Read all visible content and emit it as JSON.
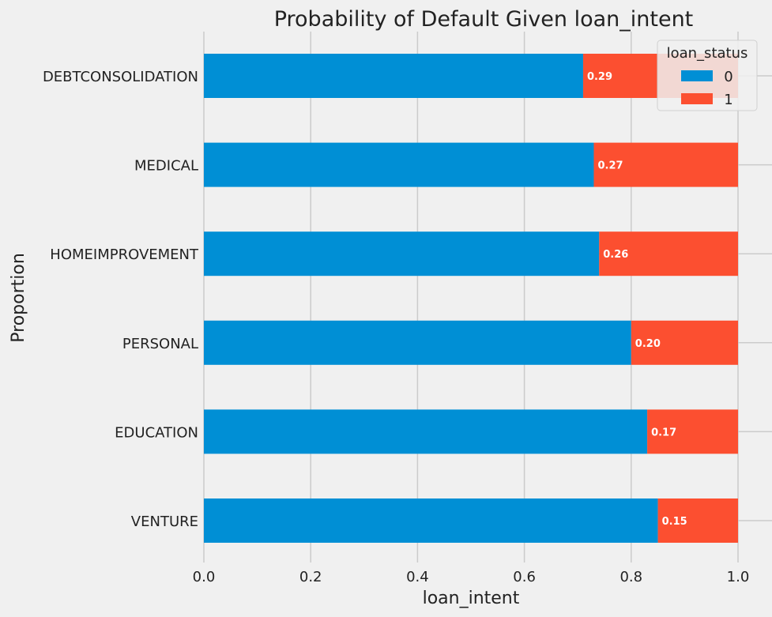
{
  "chart_data": {
    "type": "bar",
    "orientation": "horizontal",
    "stacked": true,
    "title": "Probability of Default Given loan_intent",
    "xlabel": "loan_intent",
    "ylabel": "Proportion",
    "xlim": [
      0,
      1.0
    ],
    "x_ticks": [
      "0.0",
      "0.2",
      "0.4",
      "0.6",
      "0.8",
      "1.0"
    ],
    "x_tick_values": [
      0,
      0.2,
      0.4,
      0.6,
      0.8,
      1.0
    ],
    "grid": true,
    "categories": [
      "DEBTCONSOLIDATION",
      "MEDICAL",
      "HOMEIMPROVEMENT",
      "PERSONAL",
      "EDUCATION",
      "VENTURE"
    ],
    "series": [
      {
        "name": "0",
        "color": "#008fd5",
        "values": [
          0.71,
          0.73,
          0.74,
          0.8,
          0.83,
          0.85
        ]
      },
      {
        "name": "1",
        "color": "#fc4f30",
        "values": [
          0.29,
          0.27,
          0.26,
          0.2,
          0.17,
          0.15
        ]
      }
    ],
    "data_labels": [
      "0.29",
      "0.27",
      "0.26",
      "0.20",
      "0.17",
      "0.15"
    ],
    "legend": {
      "title": "loan_status",
      "placement": "top-right",
      "entries": [
        "0",
        "1"
      ]
    }
  }
}
